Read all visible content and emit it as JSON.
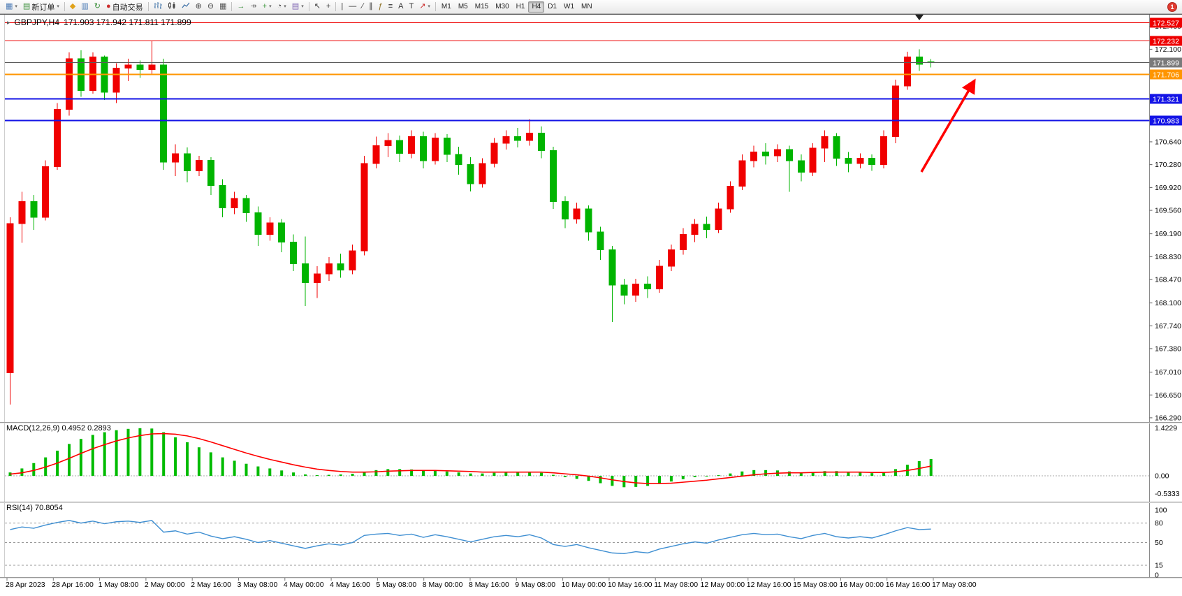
{
  "toolbar": {
    "notification_count": "1",
    "items": [
      {
        "t": "btn",
        "name": "new-chart-button",
        "icon": "chart-window-icon",
        "glyph": "▦",
        "color": "#4a7ab5",
        "caret": true
      },
      {
        "t": "btn",
        "name": "new-order-button",
        "icon": "new-order-icon",
        "glyph": "▤",
        "color": "#3a8f3a",
        "label": "新订单",
        "caret": true
      },
      {
        "t": "sep"
      },
      {
        "t": "btn",
        "name": "metaeditor-button",
        "icon": "metaeditor-icon",
        "glyph": "◆",
        "color": "#e0a21a"
      },
      {
        "t": "btn",
        "name": "market-watch-button",
        "icon": "market-watch-icon",
        "glyph": "▥",
        "color": "#4a7ab5"
      },
      {
        "t": "btn",
        "name": "refresh-button",
        "icon": "refresh-icon",
        "glyph": "↻",
        "color": "#3a8f3a"
      },
      {
        "t": "btn",
        "name": "autotrading-button",
        "icon": "autotrading-icon",
        "glyph": "●",
        "color": "#cc2b2b",
        "label": "自动交易"
      },
      {
        "t": "sep"
      },
      {
        "t": "btn",
        "name": "bar-chart-button",
        "icon": "bars-icon",
        "svg": "bars"
      },
      {
        "t": "btn",
        "name": "candlestick-chart-button",
        "icon": "candles-icon",
        "svg": "candles"
      },
      {
        "t": "btn",
        "name": "line-chart-button",
        "icon": "line-chart-icon",
        "svg": "line"
      },
      {
        "t": "btn",
        "name": "zoom-in-button",
        "icon": "zoom-in-icon",
        "glyph": "⊕",
        "color": "#444"
      },
      {
        "t": "btn",
        "name": "zoom-out-button",
        "icon": "zoom-out-icon",
        "glyph": "⊖",
        "color": "#444"
      },
      {
        "t": "btn",
        "name": "tile-windows-button",
        "icon": "tile-windows-icon",
        "glyph": "▦",
        "color": "#555"
      },
      {
        "t": "sep"
      },
      {
        "t": "btn",
        "name": "auto-scroll-button",
        "icon": "auto-scroll-icon",
        "glyph": "→",
        "color": "#3a8f3a"
      },
      {
        "t": "btn",
        "name": "chart-shift-button",
        "icon": "chart-shift-icon",
        "glyph": "↠",
        "color": "#777"
      },
      {
        "t": "btn",
        "name": "indicators-button",
        "icon": "add-indicator-icon",
        "glyph": "+",
        "color": "#2d8f2d",
        "caret": true
      },
      {
        "t": "btn",
        "name": "periods-button",
        "icon": "clock-icon",
        "glyph": "◔",
        "color": "#444",
        "caret": true
      },
      {
        "t": "btn",
        "name": "templates-button",
        "icon": "template-icon",
        "glyph": "▤",
        "color": "#7a5fb0",
        "caret": true
      },
      {
        "t": "sep"
      },
      {
        "t": "btn",
        "name": "cursor-button",
        "icon": "cursor-icon",
        "glyph": "↖",
        "color": "#333"
      },
      {
        "t": "btn",
        "name": "crosshair-button",
        "icon": "crosshair-icon",
        "glyph": "+",
        "color": "#333"
      },
      {
        "t": "sep"
      },
      {
        "t": "btn",
        "name": "vertical-line-button",
        "icon": "vertical-line-icon",
        "glyph": "|",
        "color": "#333"
      },
      {
        "t": "btn",
        "name": "horizontal-line-button",
        "icon": "horizontal-line-icon",
        "glyph": "—",
        "color": "#333"
      },
      {
        "t": "btn",
        "name": "trendline-button",
        "icon": "trendline-icon",
        "glyph": "∕",
        "color": "#333"
      },
      {
        "t": "btn",
        "name": "channel-button",
        "icon": "channel-icon",
        "glyph": "∥",
        "color": "#333"
      },
      {
        "t": "btn",
        "name": "fibonacci-button",
        "icon": "fibonacci-icon",
        "glyph": "ƒ",
        "color": "#8a6d1f"
      },
      {
        "t": "btn",
        "name": "cycle-lines-button",
        "icon": "cycle-lines-icon",
        "glyph": "≡",
        "color": "#333"
      },
      {
        "t": "btn",
        "name": "text-button",
        "icon": "text-icon",
        "glyph": "A",
        "color": "#333"
      },
      {
        "t": "btn",
        "name": "text-label-button",
        "icon": "label-icon",
        "glyph": "T",
        "color": "#333"
      },
      {
        "t": "btn",
        "name": "arrows-button",
        "icon": "arrow-icon",
        "glyph": "↗",
        "color": "#cc2b2b",
        "caret": true
      },
      {
        "t": "sep"
      },
      {
        "t": "tfgroup"
      }
    ],
    "timeframes": [
      {
        "label": "M1"
      },
      {
        "label": "M5"
      },
      {
        "label": "M15"
      },
      {
        "label": "M30"
      },
      {
        "label": "H1"
      },
      {
        "label": "H4",
        "active": true
      },
      {
        "label": "D1"
      },
      {
        "label": "W1"
      },
      {
        "label": "MN"
      }
    ]
  },
  "chart": {
    "title_symbol": "GBPJPY,H4",
    "title_ohlc": "171.903 171.942 171.811 171.899",
    "oct_toggle_glyph": "▸"
  },
  "chart_data": {
    "type": "candlestick",
    "symbol": "GBPJPY",
    "timeframe": "H4",
    "up_color": "#f00000",
    "down_color": "#00b400",
    "current_price": 171.899,
    "price_axis_ticks": [
      172.46,
      172.1,
      170.64,
      170.28,
      169.92,
      169.56,
      169.19,
      168.83,
      168.47,
      168.1,
      167.74,
      167.38,
      167.01,
      166.65,
      166.29
    ],
    "price_levels": [
      {
        "price": 172.527,
        "color": "#ee0000",
        "width": 1
      },
      {
        "price": 172.232,
        "color": "#ee0000",
        "width": 1
      },
      {
        "price": 171.899,
        "color": "#5a5a5a",
        "width": 1,
        "badge": "#7a7a7a"
      },
      {
        "price": 171.706,
        "color": "#ff9500",
        "width": 2
      },
      {
        "price": 171.321,
        "color": "#1414e6",
        "width": 2
      },
      {
        "price": 170.983,
        "color": "#1414e6",
        "width": 2
      }
    ],
    "candles": [
      [
        167.0,
        169.45,
        166.5,
        169.35
      ],
      [
        169.35,
        169.85,
        169.05,
        169.7
      ],
      [
        169.7,
        169.8,
        169.25,
        169.45
      ],
      [
        169.45,
        170.35,
        169.4,
        170.25
      ],
      [
        170.25,
        171.25,
        170.2,
        171.15
      ],
      [
        171.15,
        172.05,
        171.05,
        171.95
      ],
      [
        171.95,
        172.08,
        171.35,
        171.45
      ],
      [
        171.45,
        172.05,
        171.4,
        171.98
      ],
      [
        171.98,
        172.0,
        171.3,
        171.42
      ],
      [
        171.42,
        171.88,
        171.25,
        171.8
      ],
      [
        171.8,
        171.95,
        171.6,
        171.85
      ],
      [
        171.85,
        171.92,
        171.65,
        171.78
      ],
      [
        171.78,
        172.23,
        171.7,
        171.85
      ],
      [
        171.85,
        171.95,
        170.2,
        170.32
      ],
      [
        170.32,
        170.6,
        170.1,
        170.45
      ],
      [
        170.45,
        170.55,
        170.0,
        170.18
      ],
      [
        170.18,
        170.42,
        170.1,
        170.35
      ],
      [
        170.35,
        170.4,
        169.8,
        169.95
      ],
      [
        169.95,
        170.05,
        169.45,
        169.6
      ],
      [
        169.6,
        169.85,
        169.5,
        169.75
      ],
      [
        169.75,
        169.8,
        169.38,
        169.52
      ],
      [
        169.52,
        169.62,
        169.0,
        169.18
      ],
      [
        169.18,
        169.45,
        169.08,
        169.36
      ],
      [
        169.36,
        169.42,
        168.9,
        169.06
      ],
      [
        169.06,
        169.18,
        168.6,
        168.72
      ],
      [
        168.72,
        169.15,
        168.05,
        168.42
      ],
      [
        168.42,
        168.68,
        168.18,
        168.56
      ],
      [
        168.56,
        168.82,
        168.45,
        168.72
      ],
      [
        168.72,
        168.88,
        168.5,
        168.62
      ],
      [
        168.62,
        169.02,
        168.55,
        168.92
      ],
      [
        168.92,
        170.42,
        168.85,
        170.3
      ],
      [
        170.3,
        170.72,
        170.22,
        170.58
      ],
      [
        170.58,
        170.78,
        170.4,
        170.66
      ],
      [
        170.66,
        170.74,
        170.32,
        170.46
      ],
      [
        170.46,
        170.82,
        170.38,
        170.72
      ],
      [
        170.72,
        170.8,
        170.22,
        170.34
      ],
      [
        170.34,
        170.78,
        170.28,
        170.7
      ],
      [
        170.7,
        170.76,
        170.32,
        170.44
      ],
      [
        170.44,
        170.56,
        170.12,
        170.28
      ],
      [
        170.28,
        170.4,
        169.86,
        169.98
      ],
      [
        169.98,
        170.38,
        169.92,
        170.3
      ],
      [
        170.3,
        170.7,
        170.24,
        170.62
      ],
      [
        170.62,
        170.82,
        170.52,
        170.72
      ],
      [
        170.72,
        170.86,
        170.55,
        170.66
      ],
      [
        170.66,
        171.0,
        170.58,
        170.78
      ],
      [
        170.78,
        170.88,
        170.38,
        170.5
      ],
      [
        170.5,
        170.56,
        169.58,
        169.7
      ],
      [
        169.7,
        169.78,
        169.28,
        169.42
      ],
      [
        169.42,
        169.68,
        169.35,
        169.58
      ],
      [
        169.58,
        169.64,
        169.08,
        169.22
      ],
      [
        169.22,
        169.3,
        168.78,
        168.94
      ],
      [
        168.94,
        169.0,
        167.8,
        168.38
      ],
      [
        168.38,
        168.48,
        168.08,
        168.22
      ],
      [
        168.22,
        168.48,
        168.12,
        168.4
      ],
      [
        168.4,
        168.52,
        168.18,
        168.32
      ],
      [
        168.32,
        168.78,
        168.26,
        168.68
      ],
      [
        168.68,
        169.02,
        168.6,
        168.94
      ],
      [
        168.94,
        169.28,
        168.86,
        169.18
      ],
      [
        169.18,
        169.42,
        169.06,
        169.34
      ],
      [
        169.34,
        169.46,
        169.12,
        169.26
      ],
      [
        169.26,
        169.68,
        169.2,
        169.58
      ],
      [
        169.58,
        170.02,
        169.52,
        169.94
      ],
      [
        169.94,
        170.44,
        169.88,
        170.34
      ],
      [
        170.34,
        170.58,
        170.24,
        170.48
      ],
      [
        170.48,
        170.62,
        170.28,
        170.42
      ],
      [
        170.42,
        170.6,
        170.32,
        170.52
      ],
      [
        170.52,
        170.58,
        169.85,
        170.34
      ],
      [
        170.34,
        170.44,
        170.02,
        170.16
      ],
      [
        170.16,
        170.62,
        170.1,
        170.54
      ],
      [
        170.54,
        170.82,
        170.32,
        170.72
      ],
      [
        170.72,
        170.78,
        170.26,
        170.38
      ],
      [
        170.38,
        170.48,
        170.16,
        170.3
      ],
      [
        170.3,
        170.46,
        170.22,
        170.38
      ],
      [
        170.38,
        170.44,
        170.18,
        170.28
      ],
      [
        170.28,
        170.82,
        170.22,
        170.72
      ],
      [
        170.72,
        171.62,
        170.62,
        171.52
      ],
      [
        171.52,
        172.06,
        171.46,
        171.98
      ],
      [
        171.98,
        172.1,
        171.76,
        171.86
      ],
      [
        171.903,
        171.942,
        171.811,
        171.899
      ]
    ],
    "time_labels": [
      "28 Apr 2023",
      "28 Apr 16:00",
      "1 May 08:00",
      "2 May 00:00",
      "2 May 16:00",
      "3 May 08:00",
      "4 May 00:00",
      "4 May 16:00",
      "5 May 08:00",
      "8 May 00:00",
      "8 May 16:00",
      "9 May 08:00",
      "10 May 00:00",
      "10 May 16:00",
      "11 May 08:00",
      "12 May 00:00",
      "12 May 16:00",
      "15 May 08:00",
      "16 May 00:00",
      "16 May 16:00",
      "17 May 08:00"
    ],
    "macd": {
      "label": "MACD(12,26,9) 0.4952 0.2893",
      "axis": [
        {
          "text": "1.4229",
          "value": 1.4229
        },
        {
          "text": "0.00",
          "value": 0
        },
        {
          "text": "-0.5333",
          "value": -0.5333
        }
      ],
      "histogram_color": "#00bb00",
      "signal_color": "#ff0000",
      "histogram": [
        0.1,
        0.22,
        0.38,
        0.55,
        0.75,
        0.95,
        1.1,
        1.22,
        1.3,
        1.36,
        1.4,
        1.42,
        1.41,
        1.3,
        1.15,
        1.0,
        0.85,
        0.7,
        0.55,
        0.45,
        0.36,
        0.28,
        0.22,
        0.16,
        0.1,
        0.04,
        0.02,
        0.03,
        0.04,
        0.06,
        0.12,
        0.17,
        0.2,
        0.2,
        0.19,
        0.16,
        0.15,
        0.13,
        0.1,
        0.07,
        0.07,
        0.09,
        0.11,
        0.11,
        0.12,
        0.09,
        0.03,
        -0.04,
        -0.09,
        -0.15,
        -0.22,
        -0.3,
        -0.34,
        -0.33,
        -0.3,
        -0.24,
        -0.17,
        -0.1,
        -0.04,
        -0.02,
        0.02,
        0.07,
        0.13,
        0.17,
        0.17,
        0.16,
        0.13,
        0.1,
        0.11,
        0.14,
        0.14,
        0.12,
        0.1,
        0.08,
        0.1,
        0.2,
        0.33,
        0.44,
        0.5
      ],
      "signal": [
        0.05,
        0.09,
        0.16,
        0.26,
        0.38,
        0.52,
        0.67,
        0.81,
        0.93,
        1.04,
        1.13,
        1.2,
        1.25,
        1.26,
        1.24,
        1.19,
        1.11,
        1.01,
        0.9,
        0.79,
        0.68,
        0.58,
        0.49,
        0.41,
        0.33,
        0.26,
        0.2,
        0.16,
        0.13,
        0.11,
        0.11,
        0.12,
        0.14,
        0.15,
        0.16,
        0.16,
        0.16,
        0.15,
        0.14,
        0.13,
        0.11,
        0.11,
        0.11,
        0.11,
        0.11,
        0.11,
        0.09,
        0.06,
        0.03,
        -0.01,
        -0.06,
        -0.12,
        -0.17,
        -0.21,
        -0.23,
        -0.23,
        -0.22,
        -0.19,
        -0.16,
        -0.13,
        -0.09,
        -0.05,
        -0.01,
        0.03,
        0.06,
        0.08,
        0.09,
        0.09,
        0.1,
        0.11,
        0.11,
        0.11,
        0.11,
        0.1,
        0.1,
        0.12,
        0.16,
        0.22,
        0.29
      ]
    },
    "rsi": {
      "label": "RSI(14) 70.8054",
      "axis": [
        {
          "text": "100",
          "value": 100
        },
        {
          "text": "80",
          "value": 80
        },
        {
          "text": "50",
          "value": 50
        },
        {
          "text": "15",
          "value": 15
        },
        {
          "text": "0",
          "value": 0
        }
      ],
      "levels": [
        80,
        50,
        15
      ],
      "line_color": "#3f8fd2",
      "values": [
        70,
        74,
        72,
        77,
        81,
        84,
        80,
        83,
        79,
        82,
        83,
        81,
        84,
        66,
        68,
        63,
        66,
        60,
        56,
        59,
        55,
        50,
        53,
        49,
        45,
        41,
        45,
        48,
        46,
        50,
        61,
        63,
        64,
        61,
        63,
        58,
        62,
        59,
        55,
        51,
        55,
        59,
        61,
        59,
        62,
        57,
        47,
        44,
        47,
        42,
        38,
        34,
        33,
        36,
        34,
        40,
        44,
        48,
        51,
        49,
        54,
        58,
        62,
        64,
        62,
        63,
        59,
        56,
        61,
        64,
        59,
        57,
        59,
        57,
        62,
        68,
        73,
        70,
        70.8
      ],
      "last_value": 70.8054
    },
    "annotations": [
      {
        "type": "arrow",
        "color": "#ff0000",
        "from_price": 170.14,
        "to_price": 171.62,
        "note": "up-trend arrow pointing toward 171.706 resistance"
      }
    ]
  }
}
